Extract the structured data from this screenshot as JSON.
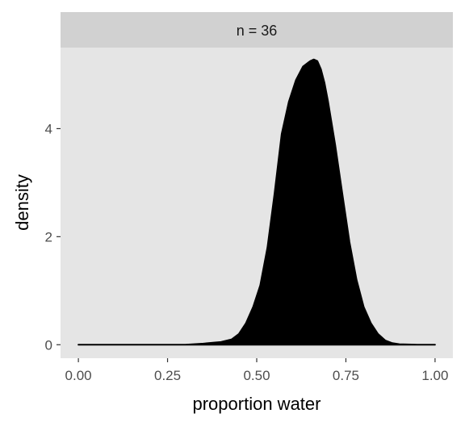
{
  "chart_data": {
    "type": "area",
    "facet_label": "n = 36",
    "xlabel": "proportion water",
    "ylabel": "density",
    "xlim": [
      -0.05,
      1.05
    ],
    "ylim": [
      -0.25,
      5.5
    ],
    "x_ticks": [
      0.0,
      0.25,
      0.5,
      0.75,
      1.0
    ],
    "x_tick_labels": [
      "0.00",
      "0.25",
      "0.50",
      "0.75",
      "1.00"
    ],
    "y_ticks": [
      0,
      2,
      4
    ],
    "y_tick_labels": [
      "0",
      "2",
      "4"
    ],
    "grid": false,
    "fill_color": "#000000",
    "panel_color": "#e5e5e5",
    "strip_color": "#d1d1d1",
    "series": [
      {
        "x": [
          0.0,
          0.1,
          0.2,
          0.3,
          0.35,
          0.38,
          0.4,
          0.43,
          0.45,
          0.47,
          0.49,
          0.51,
          0.53,
          0.55,
          0.57,
          0.59,
          0.61,
          0.63,
          0.65,
          0.66,
          0.67,
          0.68,
          0.69,
          0.7,
          0.72,
          0.74,
          0.76,
          0.78,
          0.8,
          0.82,
          0.84,
          0.86,
          0.88,
          0.9,
          0.95,
          1.0
        ],
        "y": [
          0.0,
          0.0,
          0.0,
          0.0,
          0.02,
          0.04,
          0.05,
          0.1,
          0.2,
          0.4,
          0.7,
          1.1,
          1.8,
          2.8,
          3.9,
          4.5,
          4.9,
          5.15,
          5.25,
          5.28,
          5.25,
          5.1,
          4.85,
          4.5,
          3.7,
          2.8,
          1.9,
          1.2,
          0.7,
          0.4,
          0.2,
          0.08,
          0.03,
          0.01,
          0.0,
          0.0
        ]
      }
    ]
  }
}
